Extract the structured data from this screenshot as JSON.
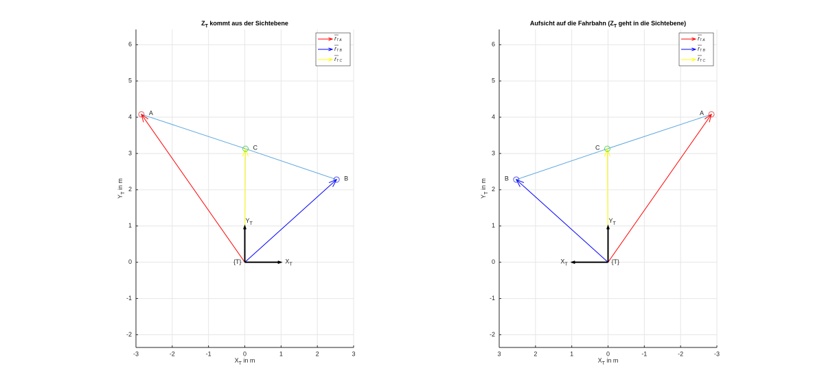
{
  "chart_data": [
    {
      "type": "vector",
      "title": [
        {
          "text": "Z"
        },
        {
          "text": "T",
          "sub": true
        },
        {
          "text": " kommt aus der Sichtebene"
        }
      ],
      "xlabel": [
        {
          "text": "X"
        },
        {
          "text": "T",
          "sub": true
        },
        {
          "text": " in m"
        }
      ],
      "ylabel": [
        {
          "text": "Y"
        },
        {
          "text": "T",
          "sub": true
        },
        {
          "text": " in m"
        }
      ],
      "xlim": [
        -3,
        3
      ],
      "ylim": [
        -2.35,
        6.42
      ],
      "xticks": [
        -3,
        -2,
        -1,
        0,
        1,
        2,
        3
      ],
      "yticks": [
        -2,
        -1,
        0,
        1,
        2,
        3,
        4,
        5,
        6
      ],
      "grid": true,
      "legend": "upper right",
      "series": [
        {
          "name": "r",
          "name_sub": "T A",
          "color": "#ff0000",
          "x": [
            0,
            -2.85
          ],
          "y": [
            0,
            4.08
          ]
        },
        {
          "name": "r",
          "name_sub": "T B",
          "color": "#0000ff",
          "x": [
            0,
            2.53
          ],
          "y": [
            0,
            2.28
          ]
        },
        {
          "name": "r",
          "name_sub": "T C",
          "color": "#ffff00",
          "x": [
            0,
            0.02
          ],
          "y": [
            0,
            3.13
          ]
        }
      ],
      "points": [
        {
          "label": "A",
          "x": -2.85,
          "y": 4.08,
          "color": "#e03030"
        },
        {
          "label": "C",
          "x": 0.02,
          "y": 3.13,
          "color": "#40d040"
        },
        {
          "label": "B",
          "x": 2.53,
          "y": 2.28,
          "color": "#3030e0"
        }
      ],
      "outline_color": "#5aa5e0",
      "frame": {
        "label": "{T}",
        "axes": [
          {
            "label": "X",
            "sub": "T",
            "x": 1,
            "y": 0
          },
          {
            "label": "Y",
            "sub": "T",
            "x": 0,
            "y": 1
          }
        ]
      }
    },
    {
      "type": "vector",
      "title": [
        {
          "text": "Aufsicht auf die Fahrbahn (Z"
        },
        {
          "text": "T",
          "sub": true
        },
        {
          "text": " geht in die  Sichtebene)"
        }
      ],
      "xlabel": [
        {
          "text": "X"
        },
        {
          "text": "T",
          "sub": true
        },
        {
          "text": " in m"
        }
      ],
      "ylabel": [
        {
          "text": "Y"
        },
        {
          "text": "T",
          "sub": true
        },
        {
          "text": " in m"
        }
      ],
      "xlim": [
        3,
        -3
      ],
      "ylim": [
        -2.35,
        6.42
      ],
      "xticks": [
        3,
        2,
        1,
        0,
        -1,
        -2,
        -3
      ],
      "yticks": [
        -2,
        -1,
        0,
        1,
        2,
        3,
        4,
        5,
        6
      ],
      "grid": true,
      "legend": "upper right",
      "series": [
        {
          "name": "r",
          "name_sub": "T A",
          "color": "#ff0000",
          "x": [
            0,
            -2.85
          ],
          "y": [
            0,
            4.08
          ]
        },
        {
          "name": "r",
          "name_sub": "T B",
          "color": "#0000ff",
          "x": [
            0,
            2.53
          ],
          "y": [
            0,
            2.28
          ]
        },
        {
          "name": "r",
          "name_sub": "T C",
          "color": "#ffff00",
          "x": [
            0,
            0.02
          ],
          "y": [
            0,
            3.13
          ]
        }
      ],
      "points": [
        {
          "label": "A",
          "x": -2.85,
          "y": 4.08,
          "color": "#e03030"
        },
        {
          "label": "C",
          "x": 0.02,
          "y": 3.13,
          "color": "#40d040"
        },
        {
          "label": "B",
          "x": 2.53,
          "y": 2.28,
          "color": "#3030e0"
        }
      ],
      "outline_color": "#5aa5e0",
      "frame": {
        "label": "{T}",
        "axes": [
          {
            "label": "X",
            "sub": "T",
            "x": 1,
            "y": 0
          },
          {
            "label": "Y",
            "sub": "T",
            "x": 0,
            "y": 1
          }
        ]
      }
    }
  ]
}
